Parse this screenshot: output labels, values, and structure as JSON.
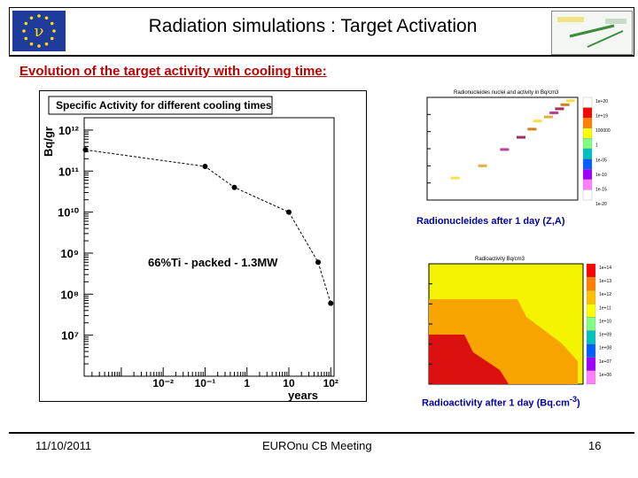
{
  "slide": {
    "title": "Radiation simulations : Target Activation",
    "section_title": "Evolution of the target activity with cooling time:",
    "logo_letter": "ν",
    "colors": {
      "title_blue": "#1f3c9c",
      "section_red": "#c00000",
      "caption_blue": "#0000a0",
      "heatmap_yellow": "#f4f400",
      "heatmap_orange": "#f7a400",
      "heatmap_red": "#dd1010"
    }
  },
  "footer": {
    "date": "11/10/2011",
    "meeting": "EUROnu CB Meeting",
    "page": "16"
  },
  "captions": {
    "nuclide_map": "Radionucleides after 1 day (Z,A)",
    "radioactivity_map": "Radioactivity after 1 day (Bq.cm"
  },
  "chart_data": [
    {
      "type": "line",
      "title": "Specific Activity for different cooling times",
      "xlabel": "years",
      "ylabel": "Bq/gr",
      "xscale": "log",
      "yscale": "log",
      "xlim": [
        0.00013,
        120
      ],
      "ylim": [
        1000000,
        2000000000000
      ],
      "x_tick_labels": [
        "10⁻²",
        "10⁻¹",
        "1",
        "10",
        "10²"
      ],
      "y_tick_labels": [
        "10⁷",
        "10⁸",
        "10⁹",
        "10¹⁰",
        "10¹¹",
        "10¹²"
      ],
      "annotation": "66%Ti - packed - 1.3MW",
      "series": [
        {
          "x": [
            0.00014,
            0.1,
            0.5,
            10,
            50,
            100
          ],
          "y": [
            330000000000,
            130000000000,
            40000000000,
            10000000000,
            600000000,
            60000000
          ]
        }
      ]
    },
    {
      "type": "heatmap",
      "title": "Radionucleides nuclei and activity in Bq/cm3",
      "caption": "Radionucleides after 1 day (Z,A)",
      "colorscale": [
        "1e+20",
        "1e+19",
        "100000",
        "1",
        "1e-05",
        "1e-10",
        "1e-15",
        "1e-20"
      ],
      "cells": [
        {
          "x": 3,
          "y": 4
        },
        {
          "x": 8,
          "y": 7
        },
        {
          "x": 12,
          "y": 11
        },
        {
          "x": 15,
          "y": 14
        },
        {
          "x": 17,
          "y": 16
        },
        {
          "x": 18,
          "y": 18
        },
        {
          "x": 20,
          "y": 19
        },
        {
          "x": 21,
          "y": 20
        },
        {
          "x": 22,
          "y": 21
        },
        {
          "x": 23,
          "y": 22
        },
        {
          "x": 24,
          "y": 23
        }
      ]
    },
    {
      "type": "heatmap",
      "title": "Radioactivity Bq/cm3",
      "caption": "Radioactivity after 1 day (Bq.cm",
      "colorscale": [
        "1e+14",
        "1e+13",
        "1e+12",
        "1e+11",
        "1e+10",
        "1e+09",
        "1e+08",
        "1e+07",
        "1e+06"
      ]
    }
  ]
}
